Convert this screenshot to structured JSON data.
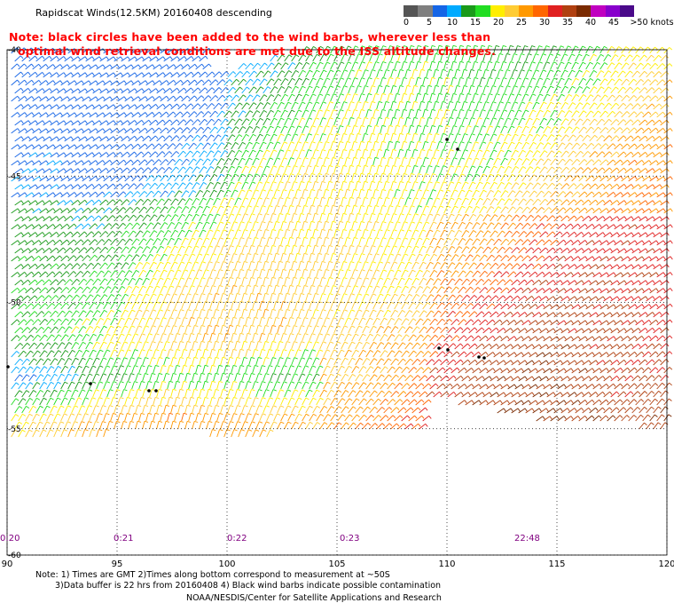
{
  "header": {
    "title": "Rapidscat Winds(12.5KM) 20160408 descending",
    "note_line1": "Note: black circles have been added to the wind barbs, wherever less than",
    "note_line2": "optimal wind retrieval conditions are met due to the ISS altitude changes."
  },
  "legend": {
    "unit": ">50 knots",
    "ticks": [
      "0",
      "5",
      "10",
      "15",
      "20",
      "25",
      "30",
      "35",
      "40",
      "45"
    ],
    "colors": [
      "#555555",
      "#7f7f7f",
      "#1565e6",
      "#00aaff",
      "#1a9a1a",
      "#22dd22",
      "#ffee00",
      "#ffcc33",
      "#ff9900",
      "#ff6600",
      "#e02020",
      "#b04010",
      "#7a2a00",
      "#c000c0",
      "#8800cc",
      "#4a0a8a"
    ]
  },
  "map": {
    "lon_ticks": [
      "90",
      "95",
      "100",
      "105",
      "110",
      "115",
      "120"
    ],
    "lat_ticks": [
      "-40",
      "-45",
      "-50",
      "-55",
      "-60"
    ],
    "time_labels": [
      "0:20",
      "0:21",
      "0:22",
      "0:23",
      "22:48"
    ]
  },
  "footer": {
    "line1": "Note: 1) Times are GMT 2)Times along bottom correspond to measurement at ~50S",
    "line2": "3)Data buffer is 22 hrs from 20160408 4) Black wind barbs indicate possible contamination",
    "credit": "NOAA/NESDIS/Center for Satellite Applications and Research"
  }
}
